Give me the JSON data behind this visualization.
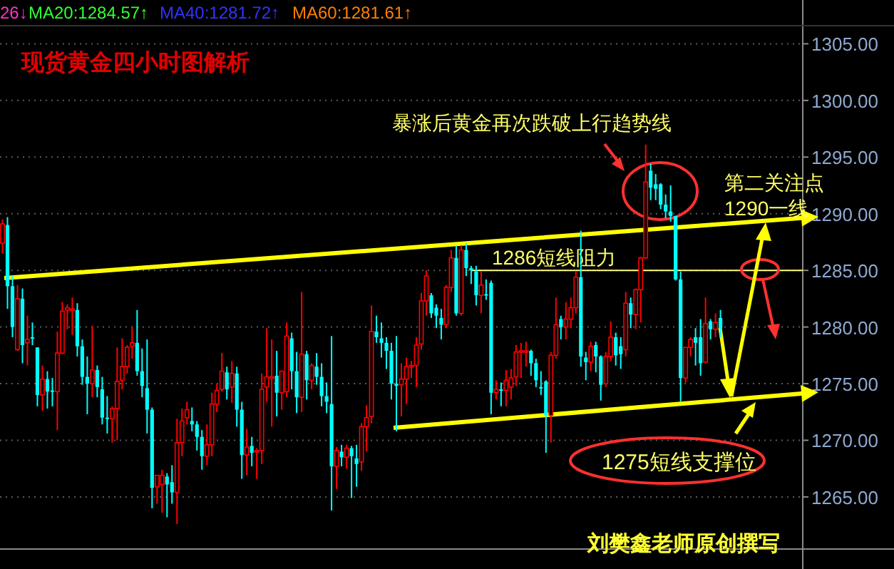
{
  "chart_data": {
    "type": "candlestick",
    "title": "现货黄金四小时图解析",
    "annotations": [
      "26↓",
      "MA20:1284.57↑",
      "MA40:1281.72↑",
      "MA60:1281.61↑",
      "暴涨后黄金再次跌破上行趋势线",
      "第二关注点",
      "1290一线",
      "1275短线支撑位",
      "刘樊鑫老师原创撰写"
    ],
    "categories": [
      null,
      null,
      null,
      null,
      null,
      null,
      null,
      null,
      null,
      null,
      null,
      null,
      null,
      null,
      null,
      null,
      null,
      null,
      null,
      null,
      null,
      null,
      null,
      null,
      null,
      null,
      null,
      null,
      null,
      null,
      null,
      null,
      null,
      null,
      null,
      null,
      null,
      null,
      null,
      null,
      null,
      null,
      null,
      null,
      null,
      null,
      null,
      null,
      null,
      null,
      null,
      null,
      null,
      null,
      null,
      null,
      null,
      null,
      null,
      null,
      null,
      null,
      null,
      null,
      null,
      null,
      null,
      null,
      null,
      null,
      null,
      null,
      null,
      null,
      null,
      null,
      null,
      null,
      null,
      null,
      null,
      null,
      null,
      null,
      null,
      null,
      null,
      null,
      null,
      null,
      null,
      null,
      null,
      null,
      null,
      null,
      null,
      null,
      null,
      null,
      null,
      null,
      null,
      null,
      null,
      null,
      null,
      null,
      null,
      null,
      null,
      null,
      null,
      null,
      null,
      null,
      null,
      null,
      null,
      null,
      null,
      null,
      null,
      null,
      null,
      null,
      null,
      null,
      null,
      null,
      null,
      null,
      null,
      null,
      null,
      null,
      null,
      null,
      null,
      null,
      null,
      null,
      null,
      null,
      null
    ],
    "ohlc": [
      [
        1287.4,
        1289.5,
        1286.5,
        1289.1
      ],
      [
        1289.0,
        1289.7,
        1281.6,
        1283.6
      ],
      [
        1283.6,
        1284.5,
        1279.1,
        1280.0
      ],
      [
        1278.0,
        1283.7,
        1277.9,
        1282.5
      ],
      [
        1282.5,
        1283.4,
        1276.8,
        1278.4
      ],
      [
        1278.6,
        1281.0,
        1276.6,
        1278.9
      ],
      [
        1279.1,
        1280.4,
        1278.4,
        1279.0
      ],
      [
        1278.2,
        1278.2,
        1273.0,
        1274.0
      ],
      [
        1274.0,
        1276.6,
        1272.6,
        1275.4
      ],
      [
        1275.4,
        1276.1,
        1272.8,
        1274.3
      ],
      [
        1274.4,
        1275.5,
        1273.0,
        1274.3
      ],
      [
        1274.3,
        1279.6,
        1270.9,
        1277.7
      ],
      [
        1277.7,
        1282.2,
        1277.6,
        1281.4
      ],
      [
        1281.5,
        1282.0,
        1279.8,
        1281.7
      ],
      [
        1281.5,
        1282.6,
        1279.3,
        1281.6
      ],
      [
        1281.5,
        1282.1,
        1277.4,
        1278.3
      ],
      [
        1278.3,
        1278.9,
        1274.9,
        1275.6
      ],
      [
        1275.6,
        1277.4,
        1272.3,
        1275.0
      ],
      [
        1275.0,
        1280.1,
        1273.8,
        1276.2
      ],
      [
        1276.2,
        1276.6,
        1273.8,
        1274.7
      ],
      [
        1274.5,
        1275.6,
        1271.4,
        1272.0
      ],
      [
        1272.0,
        1273.9,
        1270.6,
        1271.9
      ],
      [
        1271.9,
        1273.0,
        1269.8,
        1272.8
      ],
      [
        1272.8,
        1278.2,
        1270.0,
        1275.2
      ],
      [
        1275.3,
        1279.0,
        1274.5,
        1276.5
      ],
      [
        1276.5,
        1278.4,
        1275.9,
        1278.2
      ],
      [
        1278.3,
        1280.0,
        1277.2,
        1278.6
      ],
      [
        1278.6,
        1281.5,
        1275.7,
        1276.1
      ],
      [
        1276.1,
        1278.1,
        1273.8,
        1274.8
      ],
      [
        1274.6,
        1278.9,
        1270.6,
        1272.7
      ],
      [
        1272.7,
        1272.9,
        1264.0,
        1265.8
      ],
      [
        1265.9,
        1266.9,
        1264.4,
        1266.9
      ],
      [
        1266.1,
        1267.4,
        1263.6,
        1266.9
      ],
      [
        1266.8,
        1267.1,
        1263.2,
        1266.1
      ],
      [
        1266.3,
        1267.8,
        1264.4,
        1265.4
      ],
      [
        1265.4,
        1271.9,
        1262.6,
        1269.8
      ],
      [
        1269.8,
        1272.8,
        1268.6,
        1271.7
      ],
      [
        1272.0,
        1273.4,
        1271.4,
        1272.7
      ],
      [
        1271.7,
        1272.9,
        1270.8,
        1271.4
      ],
      [
        1271.4,
        1271.7,
        1269.1,
        1270.3
      ],
      [
        1270.3,
        1270.9,
        1267.4,
        1268.6
      ],
      [
        1268.6,
        1271.4,
        1267.8,
        1269.6
      ],
      [
        1269.6,
        1274.2,
        1268.6,
        1273.2
      ],
      [
        1273.2,
        1275.0,
        1272.5,
        1274.4
      ],
      [
        1274.5,
        1277.7,
        1274.3,
        1276.1
      ],
      [
        1276.0,
        1276.5,
        1273.6,
        1274.5
      ],
      [
        1274.7,
        1277.0,
        1273.3,
        1275.9
      ],
      [
        1275.9,
        1276.5,
        1271.2,
        1272.7
      ],
      [
        1272.7,
        1273.4,
        1266.6,
        1268.7
      ],
      [
        1268.7,
        1271.0,
        1266.9,
        1269.4
      ],
      [
        1269.5,
        1270.3,
        1267.7,
        1268.9
      ],
      [
        1269.0,
        1269.3,
        1266.6,
        1269.1
      ],
      [
        1269.1,
        1275.9,
        1267.9,
        1274.5
      ],
      [
        1274.7,
        1279.9,
        1273.4,
        1275.6
      ],
      [
        1275.5,
        1278.9,
        1271.2,
        1275.6
      ],
      [
        1275.7,
        1277.9,
        1272.1,
        1274.2
      ],
      [
        1274.2,
        1276.1,
        1272.7,
        1276.1
      ],
      [
        1274.3,
        1280.4,
        1273.8,
        1279.2
      ],
      [
        1279.0,
        1279.5,
        1274.5,
        1276.1
      ],
      [
        1276.1,
        1277.8,
        1272.4,
        1273.8
      ],
      [
        1273.8,
        1283.1,
        1272.5,
        1277.6
      ],
      [
        1277.6,
        1277.9,
        1273.6,
        1275.3
      ],
      [
        1275.3,
        1276.8,
        1274.5,
        1276.6
      ],
      [
        1276.5,
        1277.7,
        1274.9,
        1275.6
      ],
      [
        1275.6,
        1276.8,
        1273.0,
        1273.9
      ],
      [
        1273.9,
        1275.1,
        1272.4,
        1273.4
      ],
      [
        1273.2,
        1279.2,
        1263.8,
        1267.7
      ],
      [
        1267.7,
        1269.4,
        1265.7,
        1269.1
      ],
      [
        1269.0,
        1269.6,
        1267.7,
        1268.5
      ],
      [
        1268.5,
        1269.6,
        1267.5,
        1269.3
      ],
      [
        1269.3,
        1269.5,
        1264.9,
        1268.6
      ],
      [
        1268.4,
        1269.6,
        1265.9,
        1267.9
      ],
      [
        1268.1,
        1271.5,
        1267.3,
        1271.2
      ],
      [
        1271.2,
        1273.1,
        1269.0,
        1272.0
      ],
      [
        1272.1,
        1281.9,
        1271.5,
        1279.6
      ],
      [
        1279.6,
        1281.0,
        1278.6,
        1279.1
      ],
      [
        1279.0,
        1280.4,
        1277.3,
        1278.6
      ],
      [
        1278.6,
        1279.1,
        1276.3,
        1277.9
      ],
      [
        1277.9,
        1278.6,
        1273.6,
        1275.0
      ],
      [
        1275.0,
        1279.2,
        1270.8,
        1274.8
      ],
      [
        1274.9,
        1276.8,
        1272.1,
        1275.4
      ],
      [
        1275.4,
        1277.3,
        1273.2,
        1276.5
      ],
      [
        1276.5,
        1277.0,
        1275.5,
        1276.6
      ],
      [
        1276.6,
        1279.1,
        1274.7,
        1278.4
      ],
      [
        1278.5,
        1283.0,
        1278.0,
        1282.3
      ],
      [
        1282.3,
        1285.0,
        1281.0,
        1284.5
      ],
      [
        1282.8,
        1283.0,
        1280.8,
        1281.2
      ],
      [
        1281.7,
        1282.0,
        1279.9,
        1281.0
      ],
      [
        1280.8,
        1281.6,
        1278.9,
        1280.2
      ],
      [
        1280.2,
        1283.7,
        1279.9,
        1283.5
      ],
      [
        1283.5,
        1286.8,
        1283.1,
        1286.1
      ],
      [
        1286.1,
        1287.2,
        1281.0,
        1281.2
      ],
      [
        1281.2,
        1287.2,
        1281.0,
        1286.8
      ],
      [
        1286.8,
        1287.4,
        1284.5,
        1285.2
      ],
      [
        1285.2,
        1285.4,
        1283.8,
        1285.0
      ],
      [
        1284.9,
        1285.4,
        1281.9,
        1282.8
      ],
      [
        1282.8,
        1284.9,
        1281.2,
        1283.7
      ],
      [
        1282.9,
        1284.2,
        1282.4,
        1282.8
      ],
      [
        1283.9,
        1284.1,
        1272.3,
        1274.2
      ],
      [
        1274.2,
        1275.3,
        1273.6,
        1274.5
      ],
      [
        1274.5,
        1275.1,
        1273.0,
        1274.4
      ],
      [
        1274.4,
        1276.2,
        1273.0,
        1275.3
      ],
      [
        1274.7,
        1276.3,
        1273.6,
        1275.5
      ],
      [
        1275.6,
        1278.4,
        1274.8,
        1277.8
      ],
      [
        1277.8,
        1278.6,
        1275.5,
        1277.9
      ],
      [
        1277.8,
        1278.7,
        1276.5,
        1277.9
      ],
      [
        1277.9,
        1278.0,
        1275.7,
        1276.8
      ],
      [
        1276.8,
        1277.2,
        1274.7,
        1275.3
      ],
      [
        1274.7,
        1276.1,
        1274.0,
        1274.6
      ],
      [
        1275.2,
        1275.3,
        1268.9,
        1272.2
      ],
      [
        1272.2,
        1277.8,
        1269.8,
        1277.5
      ],
      [
        1277.5,
        1282.6,
        1277.2,
        1280.2
      ],
      [
        1280.7,
        1281.0,
        1278.9,
        1280.0
      ],
      [
        1280.0,
        1282.2,
        1278.9,
        1280.7
      ],
      [
        1280.7,
        1282.6,
        1279.9,
        1281.7
      ],
      [
        1281.7,
        1284.9,
        1281.2,
        1284.4
      ],
      [
        1284.4,
        1288.5,
        1276.5,
        1277.4
      ],
      [
        1277.3,
        1277.8,
        1275.3,
        1276.9
      ],
      [
        1276.9,
        1278.7,
        1276.1,
        1278.3
      ],
      [
        1278.4,
        1278.7,
        1276.0,
        1277.4
      ],
      [
        1277.4,
        1277.5,
        1273.5,
        1274.9
      ],
      [
        1275.0,
        1277.8,
        1274.7,
        1277.4
      ],
      [
        1277.4,
        1280.5,
        1277.0,
        1279.1
      ],
      [
        1279.1,
        1279.5,
        1276.6,
        1277.5
      ],
      [
        1278.3,
        1279.1,
        1276.3,
        1277.6
      ],
      [
        1278.0,
        1283.1,
        1277.4,
        1282.1
      ],
      [
        1282.1,
        1282.6,
        1279.9,
        1281.1
      ],
      [
        1281.1,
        1283.4,
        1279.8,
        1283.3
      ],
      [
        1283.3,
        1286.2,
        1280.4,
        1286.1
      ],
      [
        1286.1,
        1296.1,
        1286.0,
        1292.8
      ],
      [
        1293.8,
        1294.4,
        1291.2,
        1292.3
      ],
      [
        1292.6,
        1293.5,
        1291.2,
        1292.2
      ],
      [
        1292.6,
        1292.7,
        1290.4,
        1290.8
      ],
      [
        1290.8,
        1291.7,
        1289.6,
        1290.2
      ],
      [
        1290.2,
        1292.5,
        1289.3,
        1289.8
      ],
      [
        1289.8,
        1289.8,
        1284.1,
        1284.2
      ],
      [
        1284.2,
        1284.9,
        1273.4,
        1275.5
      ],
      [
        1275.5,
        1278.2,
        1275.1,
        1278.2
      ],
      [
        1278.2,
        1279.1,
        1277.4,
        1278.9
      ],
      [
        1279.1,
        1279.9,
        1276.6,
        1278.6
      ],
      [
        1279.1,
        1280.7,
        1275.7,
        1276.8
      ],
      [
        1276.9,
        1282.6,
        1276.8,
        1280.3
      ],
      [
        1280.5,
        1280.7,
        1278.9,
        1279.8
      ],
      [
        1279.8,
        1281.2,
        1279.1,
        1280.4
      ],
      [
        1280.8,
        1281.5,
        1279.1,
        1279.9
      ]
    ],
    "colors": [
      "#ff0000",
      "#00ffff",
      "#00ffff",
      "#ff0000",
      "#00ffff",
      "#ff0000",
      "#00ffff",
      "#00ffff",
      "#ff0000",
      "#00ffff",
      "#00ffff",
      "#ff0000",
      "#ff0000",
      "#ff0000",
      "#ff0000",
      "#00ffff",
      "#00ffff",
      "#00ffff",
      "#ff0000",
      "#00ffff",
      "#00ffff",
      "#00ffff",
      "#ff0000",
      "#ff0000",
      "#ff0000",
      "#ff0000",
      "#ff0000",
      "#00ffff",
      "#00ffff",
      "#00ffff",
      "#00ffff",
      "#ff0000",
      "#ff0000",
      "#00ffff",
      "#00ffff",
      "#ff0000",
      "#ff0000",
      "#ff0000",
      "#00ffff",
      "#00ffff",
      "#00ffff",
      "#ff0000",
      "#ff0000",
      "#ff0000",
      "#ff0000",
      "#00ffff",
      "#ff0000",
      "#00ffff",
      "#00ffff",
      "#ff0000",
      "#00ffff",
      "#ff0000",
      "#ff0000",
      "#ff0000",
      "#ff0000",
      "#00ffff",
      "#ff0000",
      "#ff0000",
      "#00ffff",
      "#00ffff",
      "#ff0000",
      "#00ffff",
      "#ff0000",
      "#00ffff",
      "#00ffff",
      "#00ffff",
      "#00ffff",
      "#ff0000",
      "#00ffff",
      "#ff0000",
      "#00ffff",
      "#00ffff",
      "#ff0000",
      "#ff0000",
      "#ff0000",
      "#00ffff",
      "#00ffff",
      "#00ffff",
      "#00ffff",
      "#00ffff",
      "#ff0000",
      "#ff0000",
      "#ff0000",
      "#ff0000",
      "#ff0000",
      "#ff0000",
      "#00ffff",
      "#00ffff",
      "#00ffff",
      "#ff0000",
      "#ff0000",
      "#00ffff",
      "#ff0000",
      "#00ffff",
      "#00ffff",
      "#00ffff",
      "#ff0000",
      "#00ffff",
      "#00ffff",
      "#ff0000",
      "#00ffff",
      "#ff0000",
      "#ff0000",
      "#ff0000",
      "#ff0000",
      "#ff0000",
      "#00ffff",
      "#00ffff",
      "#00ffff",
      "#00ffff",
      "#ff0000",
      "#ff0000",
      "#00ffff",
      "#ff0000",
      "#ff0000",
      "#ff0000",
      "#00ffff",
      "#00ffff",
      "#ff0000",
      "#00ffff",
      "#00ffff",
      "#ff0000",
      "#ff0000",
      "#00ffff",
      "#00ffff",
      "#ff0000",
      "#00ffff",
      "#ff0000",
      "#ff0000",
      "#ff0000",
      "#00ffff",
      "#00ffff",
      "#00ffff",
      "#00ffff",
      "#00ffff",
      "#00ffff",
      "#00ffff",
      "#ff0000",
      "#ff0000",
      "#00ffff",
      "#00ffff",
      "#ff0000",
      "#00ffff",
      "#ff0000",
      "#00ffff"
    ],
    "ref_lines": [
      {
        "axis": "y",
        "value": 1285,
        "label": "1286短线阻力",
        "color": "#ffff80"
      }
    ],
    "ylim": [
      1260.4,
      1306.6
    ],
    "yticks": [
      {
        "value": 1265,
        "label": "1265.00"
      },
      {
        "value": 1270,
        "label": "1270.00"
      },
      {
        "value": 1275,
        "label": "1275.00"
      },
      {
        "value": 1280,
        "label": "1280.00"
      },
      {
        "value": 1285,
        "label": "1285.00"
      },
      {
        "value": 1290,
        "label": "1290.00"
      },
      {
        "value": 1295,
        "label": "1295.00"
      },
      {
        "value": 1300,
        "label": "1300.00"
      },
      {
        "value": 1305,
        "label": "1305.00"
      }
    ],
    "grid": "y",
    "tick_labels": "y"
  }
}
